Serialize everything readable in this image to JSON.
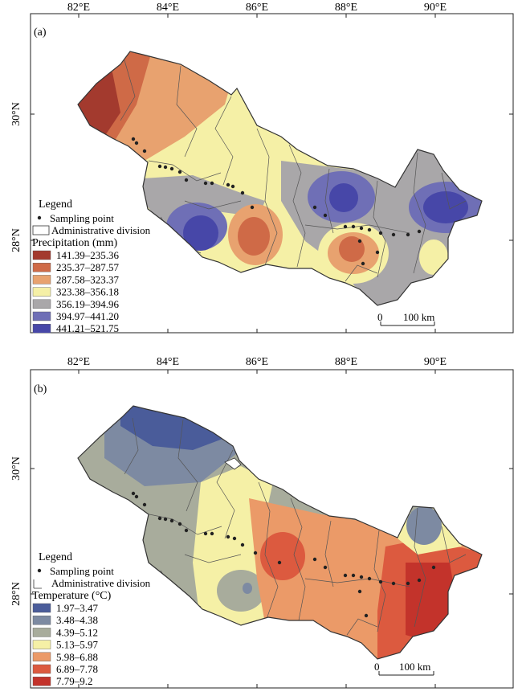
{
  "panels": [
    {
      "id": "a",
      "label": "(a)",
      "x_ticks": [
        "82°E",
        "84°E",
        "86°E",
        "88°E",
        "90°E"
      ],
      "y_ticks": [
        "30°N",
        "28°N"
      ],
      "legend": {
        "title": "Legend",
        "sampling_point": "Sampling point",
        "admin_division": "Administrative division",
        "variable_label": "Precipitation (mm)",
        "classes": [
          {
            "label": "141.39–235.36",
            "color": "#a33a2e"
          },
          {
            "label": "235.37–287.57",
            "color": "#cf6a47"
          },
          {
            "label": "287.58–323.37",
            "color": "#e8a26f"
          },
          {
            "label": "323.38–356.18",
            "color": "#f5f0a6"
          },
          {
            "label": "356.19–394.96",
            "color": "#a9a7a9"
          },
          {
            "label": "394.97–441.20",
            "color": "#6f6fb6"
          },
          {
            "label": "441.21–521.75",
            "color": "#4747a8"
          }
        ]
      },
      "scale": {
        "zero": "0",
        "distance": "100 km"
      }
    },
    {
      "id": "b",
      "label": "(b)",
      "x_ticks": [
        "82°E",
        "84°E",
        "86°E",
        "88°E",
        "90°E"
      ],
      "y_ticks": [
        "30°N",
        "28°N"
      ],
      "legend": {
        "title": "Legend",
        "sampling_point": "Sampling point",
        "admin_division": "Administrative division",
        "variable_label": "Temperature (°C)",
        "classes": [
          {
            "label": "1.97–3.47",
            "color": "#4a5c9a"
          },
          {
            "label": "3.48–4.38",
            "color": "#7d8aa2"
          },
          {
            "label": "4.39–5.12",
            "color": "#a8ac9c"
          },
          {
            "label": "5.13–5.97",
            "color": "#f5f0a6"
          },
          {
            "label": "5.98–6.88",
            "color": "#eb9a68"
          },
          {
            "label": "6.89–7.78",
            "color": "#dc5a3f"
          },
          {
            "label": "7.79–9.2",
            "color": "#c3332b"
          }
        ]
      },
      "scale": {
        "zero": "0",
        "distance": "100 km"
      }
    }
  ]
}
